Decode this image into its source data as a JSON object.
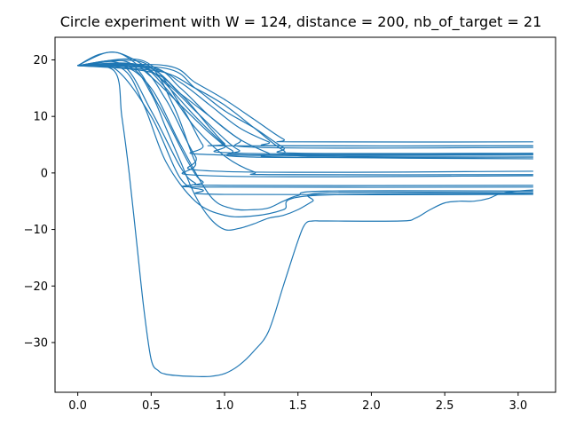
{
  "chart_data": {
    "type": "line",
    "title": "Circle experiment with W = 124, distance = 200, nb_of_target = 21",
    "xlabel": "",
    "ylabel": "",
    "xlim": [
      -0.155,
      3.255
    ],
    "ylim": [
      -38.8,
      24.0
    ],
    "x_ticks": [
      0.0,
      0.5,
      1.0,
      1.5,
      2.0,
      2.5,
      3.0
    ],
    "x_tick_labels": [
      "0.0",
      "0.5",
      "1.0",
      "1.5",
      "2.0",
      "2.5",
      "3.0"
    ],
    "y_ticks": [
      20,
      10,
      0,
      -10,
      -20,
      -30
    ],
    "y_tick_labels": [
      "20",
      "10",
      "0",
      "−10",
      "−20",
      "−30"
    ],
    "grid": false,
    "legend": "none",
    "line_color": "#1f77b4",
    "series": [
      {
        "x": [
          0,
          0.25,
          0.3,
          0.35,
          0.4,
          0.45,
          0.5,
          0.55,
          0.6,
          0.7,
          0.8,
          0.9,
          1.0,
          1.1,
          1.2,
          1.3,
          1.4,
          1.5,
          1.55,
          1.6,
          1.65,
          1.7,
          2.2,
          2.3,
          2.4,
          2.5,
          2.6,
          2.7,
          2.8,
          2.9,
          3.1
        ],
        "y": [
          19,
          18,
          10,
          0,
          -12,
          -24,
          -33,
          -35,
          -35.6,
          -35.9,
          -36,
          -36,
          -35.5,
          -34,
          -31.5,
          -28,
          -20,
          -12,
          -9,
          -8.5,
          -8.5,
          -8.5,
          -8.5,
          -8,
          -6.5,
          -5.3,
          -5.0,
          -5.0,
          -4.5,
          -3.5,
          -3.0
        ]
      },
      {
        "x": [
          0,
          0.35,
          0.5,
          0.6,
          0.7,
          0.8,
          0.9,
          1.0,
          1.1,
          1.2,
          1.3,
          1.4,
          1.5,
          1.6,
          1.7,
          3.1
        ],
        "y": [
          19,
          18.8,
          14,
          8,
          2,
          -4,
          -8,
          -10,
          -9.8,
          -9,
          -8,
          -7.5,
          -6.5,
          -5,
          -3.5,
          -3.5
        ]
      },
      {
        "x": [
          0,
          0.3,
          0.45,
          0.6,
          0.8,
          1.0,
          1.2,
          1.4,
          1.6,
          3.1
        ],
        "y": [
          19,
          18.5,
          12,
          2,
          -5,
          -7.5,
          -7.6,
          -6.5,
          -4,
          -3.6
        ]
      },
      {
        "x": [
          0,
          0.3,
          0.5,
          0.7,
          0.9,
          1.05,
          1.2,
          1.3,
          1.4,
          1.5,
          1.7,
          3.1
        ],
        "y": [
          19,
          19,
          15,
          5,
          -4,
          -6.3,
          -6.5,
          -6.2,
          -5,
          -4,
          -3.2,
          -3.2
        ]
      },
      {
        "x": [
          0,
          0.25,
          0.5,
          0.7,
          0.85,
          1.0,
          3.1
        ],
        "y": [
          19,
          18.5,
          10,
          -1,
          -3,
          -3.8,
          -3.8
        ]
      },
      {
        "x": [
          0,
          0.3,
          0.5,
          0.7,
          0.8,
          0.9,
          3.1
        ],
        "y": [
          19,
          19.2,
          11,
          1,
          -1.8,
          -2.5,
          -2.5
        ]
      },
      {
        "x": [
          0,
          0.35,
          0.55,
          0.75,
          0.85,
          1.0,
          3.1
        ],
        "y": [
          19,
          19.5,
          12,
          2,
          -1.5,
          -2.2,
          -2.2
        ]
      },
      {
        "x": [
          0,
          0.4,
          0.6,
          0.8,
          0.95,
          3.1
        ],
        "y": [
          19,
          19,
          13,
          3,
          0.3,
          0.3
        ]
      },
      {
        "x": [
          0,
          0.45,
          0.65,
          0.8,
          0.9,
          3.1
        ],
        "y": [
          19,
          19.5,
          12,
          2,
          -0.5,
          -0.5
        ]
      },
      {
        "x": [
          0,
          0.4,
          0.6,
          0.8,
          1.0,
          1.2,
          1.35,
          3.1
        ],
        "y": [
          19,
          19.2,
          15,
          8,
          3,
          0.2,
          -0.3,
          -0.3
        ]
      },
      {
        "x": [
          0,
          0.45,
          0.7,
          0.85,
          0.95,
          3.1
        ],
        "y": [
          19,
          19.8,
          12,
          5,
          3.2,
          3.2
        ]
      },
      {
        "x": [
          0,
          0.15,
          0.3,
          0.5,
          0.7,
          0.9,
          1.05,
          1.2,
          3.1
        ],
        "y": [
          19,
          21,
          21,
          17,
          12,
          7,
          4,
          2.8,
          2.8
        ]
      },
      {
        "x": [
          0,
          0.2,
          0.35,
          0.55,
          0.8,
          1.0,
          1.1,
          3.1
        ],
        "y": [
          19,
          21.3,
          20.5,
          17,
          10,
          5,
          3.5,
          3.3
        ]
      },
      {
        "x": [
          0,
          0.4,
          0.6,
          0.8,
          1.0,
          1.1,
          1.2,
          3.1
        ],
        "y": [
          19,
          19,
          16,
          11,
          6,
          4,
          3.2,
          3.2
        ]
      },
      {
        "x": [
          0,
          0.45,
          0.7,
          0.9,
          1.0,
          1.05,
          3.1
        ],
        "y": [
          19,
          19,
          14,
          8,
          5.2,
          4.8,
          4.8
        ]
      },
      {
        "x": [
          0,
          0.5,
          0.7,
          0.9,
          1.1,
          1.25,
          3.1
        ],
        "y": [
          19,
          18.8,
          15,
          10,
          6,
          4.5,
          4.5
        ]
      },
      {
        "x": [
          0,
          0.5,
          0.7,
          0.9,
          1.1,
          1.3,
          1.4,
          3.1
        ],
        "y": [
          19,
          18.5,
          16,
          12,
          8,
          5.5,
          4.8,
          4.8
        ]
      },
      {
        "x": [
          0,
          0.55,
          0.8,
          1.0,
          1.2,
          1.4,
          1.55,
          3.1
        ],
        "y": [
          19,
          18,
          15,
          12,
          8,
          4,
          3,
          2.8
        ]
      },
      {
        "x": [
          0,
          0.6,
          0.8,
          1.0,
          1.2,
          1.4,
          1.5,
          3.1
        ],
        "y": [
          19,
          18.5,
          15,
          11,
          8,
          4.5,
          3.5,
          3.5
        ]
      },
      {
        "x": [
          0,
          0.6,
          0.8,
          1.0,
          1.2,
          1.4,
          1.5,
          3.1
        ],
        "y": [
          19,
          19,
          16,
          13,
          9.5,
          6,
          5.5,
          5.5
        ]
      },
      {
        "x": [
          0,
          0.5,
          0.7,
          0.9,
          1.1,
          1.3,
          1.4,
          3.1
        ],
        "y": [
          19,
          17.8,
          14,
          10,
          6,
          3.5,
          2.8,
          2.5
        ]
      }
    ]
  }
}
